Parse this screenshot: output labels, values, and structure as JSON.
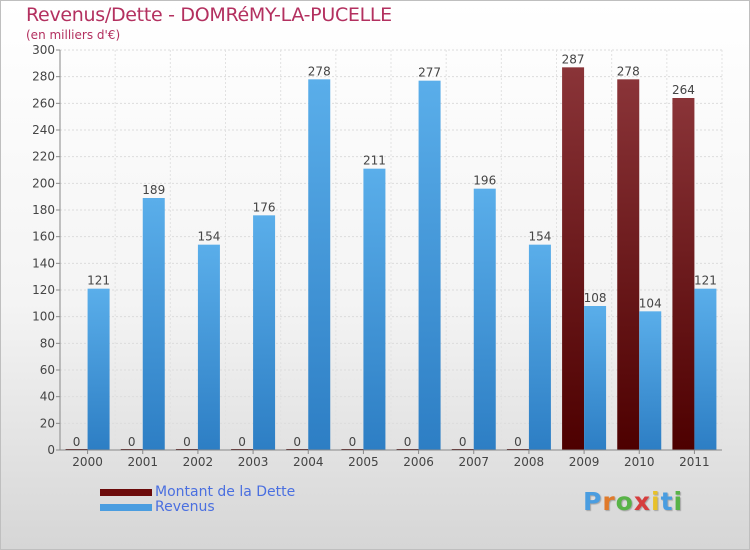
{
  "title": "Revenus/Dette - DOMRéMY-LA-PUCELLE",
  "subtitle": "(en milliers d'€)",
  "logo_text": "Proxiti",
  "colors": {
    "title": "#b3305f",
    "debt_top": "#8a3438",
    "debt_bottom": "#4d0000",
    "revenue_top": "#5aaeea",
    "revenue_bottom": "#2d7ec4",
    "legend_text": "#4a6fe0"
  },
  "legend": [
    {
      "label": "Montant de la Dette",
      "color": "#6b0a0a"
    },
    {
      "label": "Revenus",
      "color": "#4a9de0"
    }
  ],
  "chart_data": {
    "type": "bar",
    "categories": [
      "2000",
      "2001",
      "2002",
      "2003",
      "2004",
      "2005",
      "2006",
      "2007",
      "2008",
      "2009",
      "2010",
      "2011"
    ],
    "series": [
      {
        "name": "Montant de la Dette",
        "values": [
          0,
          0,
          0,
          0,
          0,
          0,
          0,
          0,
          0,
          287,
          278,
          264
        ]
      },
      {
        "name": "Revenus",
        "values": [
          121,
          189,
          154,
          176,
          278,
          211,
          277,
          196,
          154,
          108,
          104,
          121
        ]
      }
    ],
    "ylim": [
      0,
      300
    ],
    "yticks": [
      0,
      20,
      40,
      60,
      80,
      100,
      120,
      140,
      160,
      180,
      200,
      220,
      240,
      260,
      280,
      300
    ],
    "grid": true,
    "legend_position": "bottom-left"
  }
}
